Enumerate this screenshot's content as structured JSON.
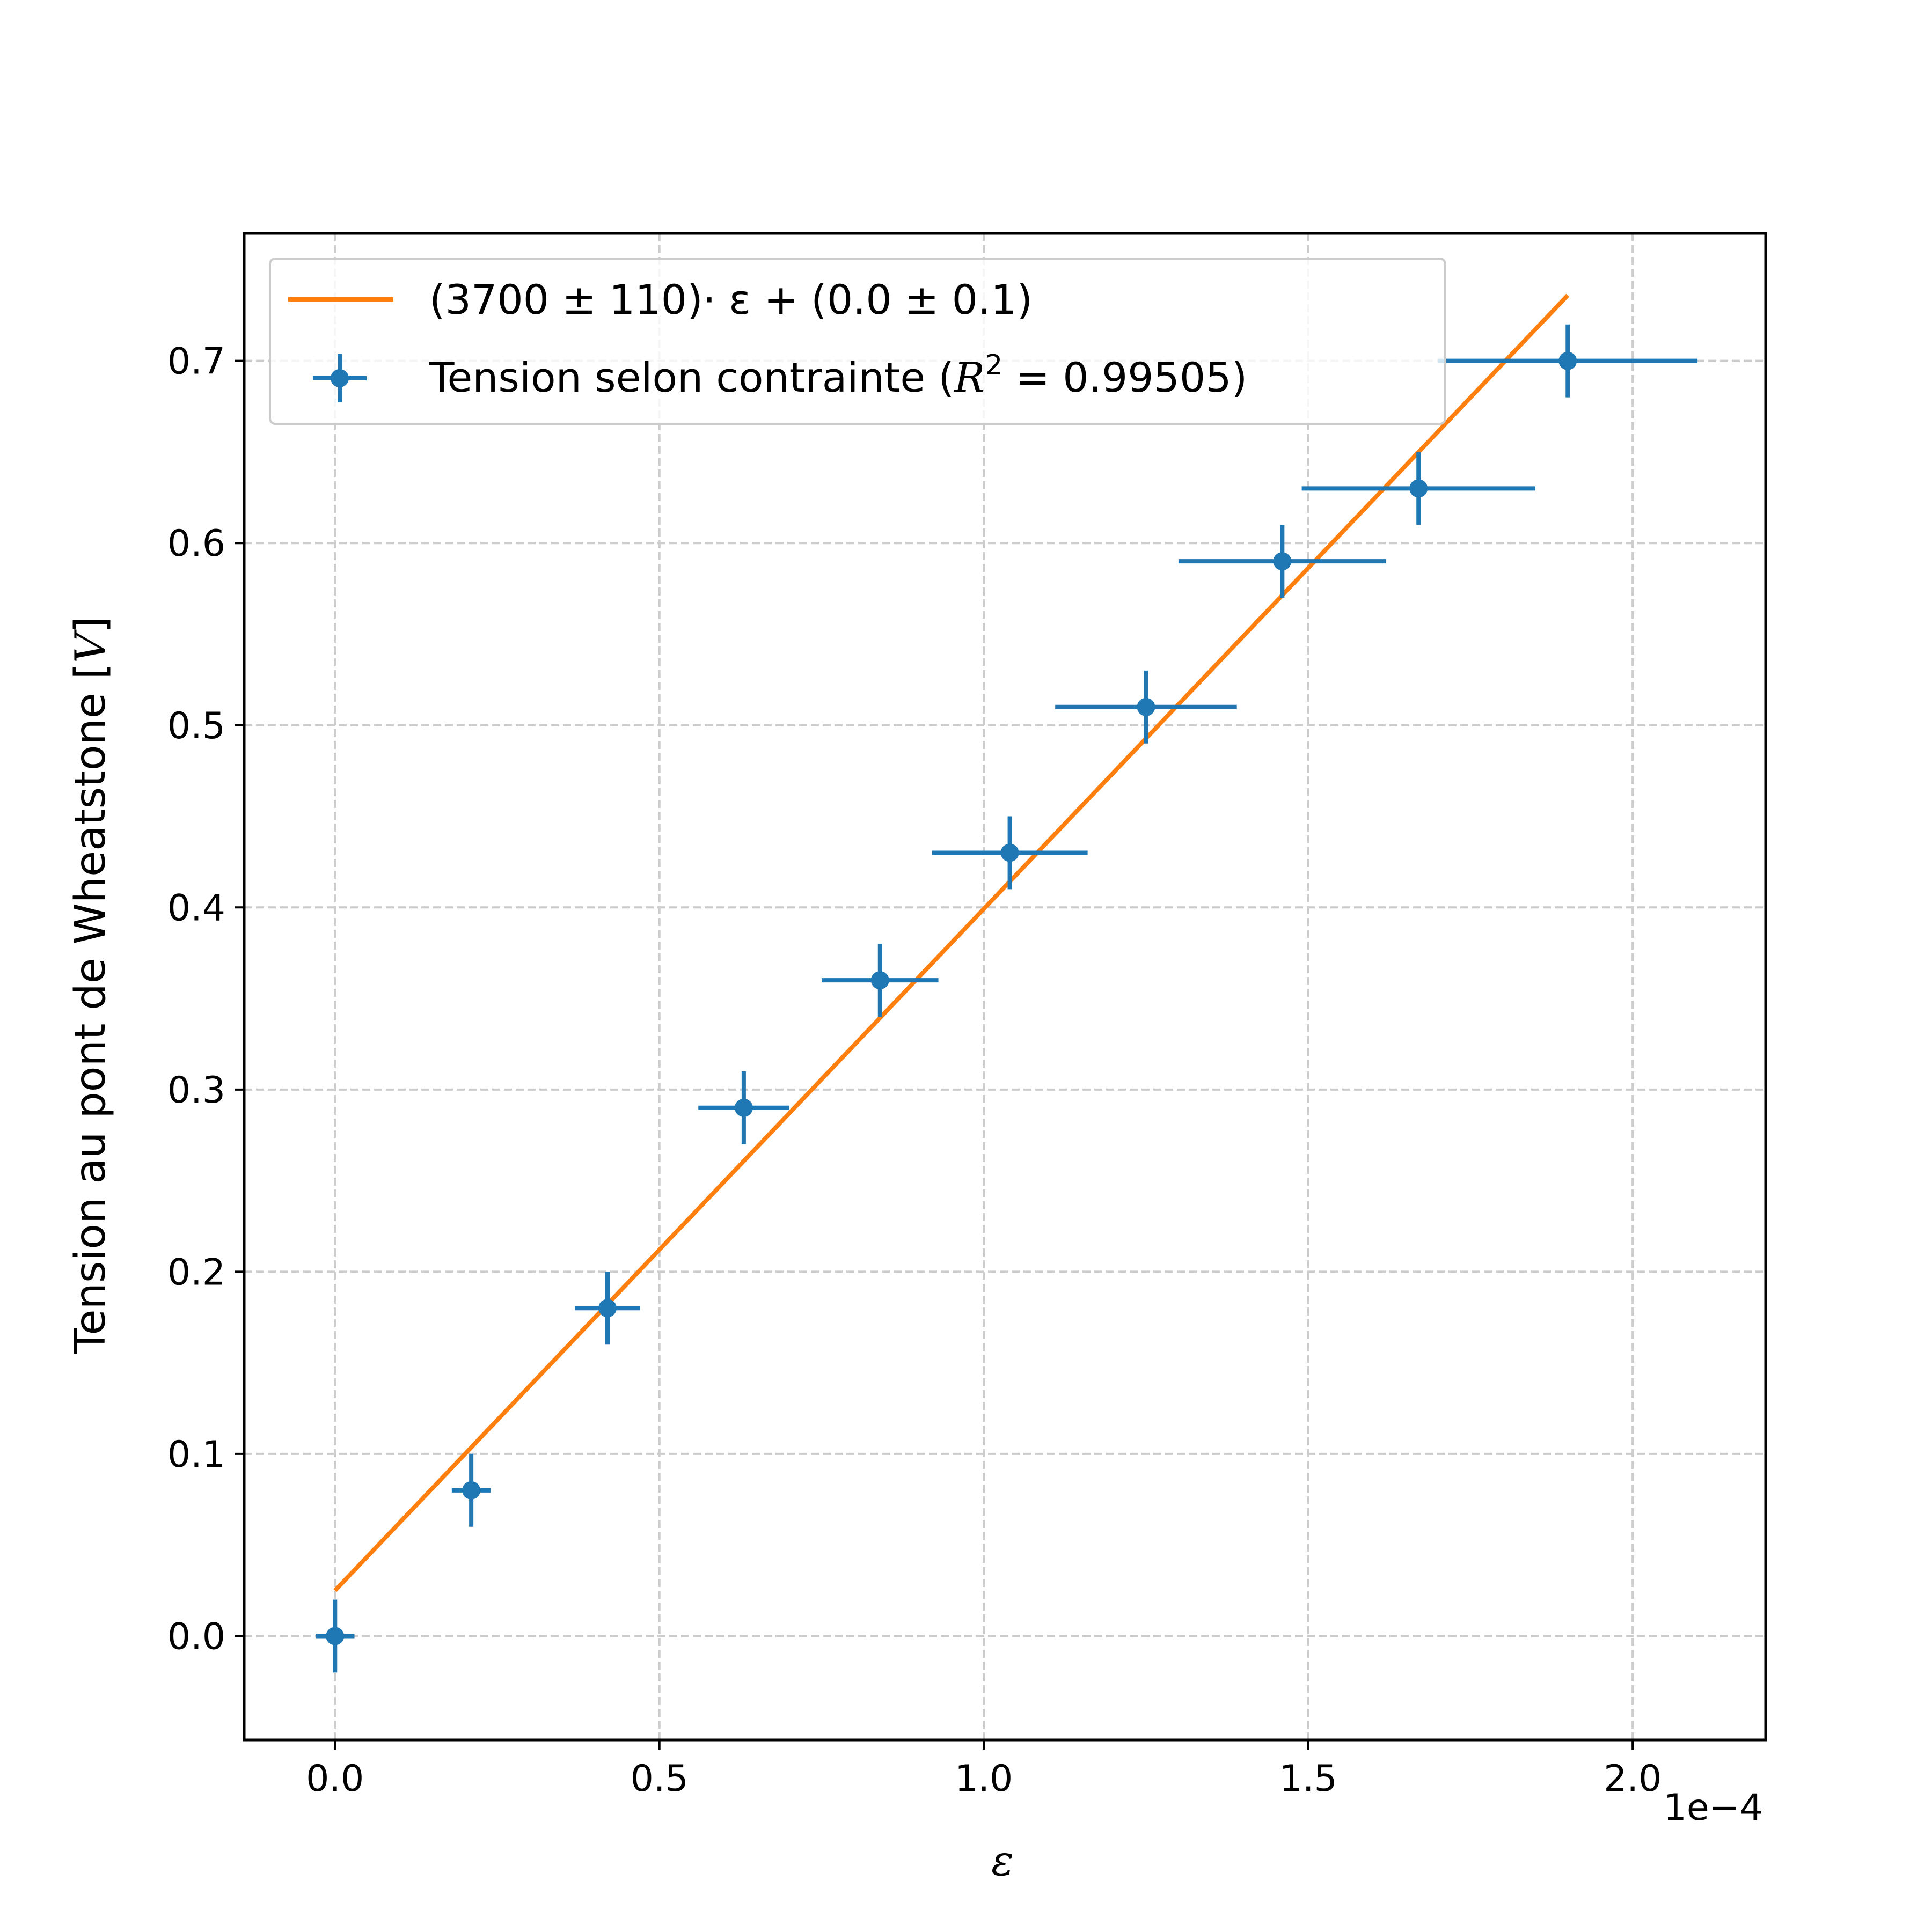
{
  "chart_data": {
    "type": "scatter",
    "x_offset_label": "1e−4",
    "xlabel": "ε",
    "ylabel_prefix": "Tension au pont de Wheatstone [",
    "ylabel_var": "V",
    "ylabel_suffix": "]",
    "xlim": [
      -0.14,
      2.205
    ],
    "ylim": [
      -0.057,
      0.77
    ],
    "x_ticks": [
      0.0,
      0.5,
      1.0,
      1.5,
      2.0
    ],
    "x_tick_labels": [
      "0.0",
      "0.5",
      "1.0",
      "1.5",
      "2.0"
    ],
    "y_ticks": [
      0.0,
      0.1,
      0.2,
      0.3,
      0.4,
      0.5,
      0.6,
      0.7
    ],
    "y_tick_labels": [
      "0.0",
      "0.1",
      "0.2",
      "0.3",
      "0.4",
      "0.5",
      "0.6",
      "0.7"
    ],
    "grid": true,
    "legend_position": "top-left",
    "colors": {
      "data": "#1f77b4",
      "fit": "#ff7f0e",
      "grid": "#cccccc"
    },
    "series": [
      {
        "name": "Tension selon contrainte",
        "kind": "errorbar",
        "x": [
          0.0,
          0.21,
          0.42,
          0.63,
          0.84,
          1.04,
          1.25,
          1.46,
          1.67,
          1.9
        ],
        "y": [
          0.0,
          0.08,
          0.18,
          0.29,
          0.36,
          0.43,
          0.51,
          0.59,
          0.63,
          0.7
        ],
        "xerr": [
          0.03,
          0.03,
          0.05,
          0.07,
          0.09,
          0.12,
          0.14,
          0.16,
          0.18,
          0.2
        ],
        "yerr": [
          0.02,
          0.02,
          0.02,
          0.02,
          0.02,
          0.02,
          0.02,
          0.02,
          0.02,
          0.02
        ]
      },
      {
        "name": "(3700 ± 110)· ε + (0.0 ± 0.1)",
        "kind": "line",
        "x": [
          0.0,
          1.9
        ],
        "y": [
          0.025,
          0.736
        ]
      }
    ],
    "legend": {
      "fit_label": "(3700 ± 110)· ε + (0.0 ± 0.1)",
      "data_label_text": "Tension selon contrainte (",
      "data_label_math_var": "R",
      "data_label_math_sup": "2",
      "data_label_math_rest": " = 0.99505)"
    }
  }
}
